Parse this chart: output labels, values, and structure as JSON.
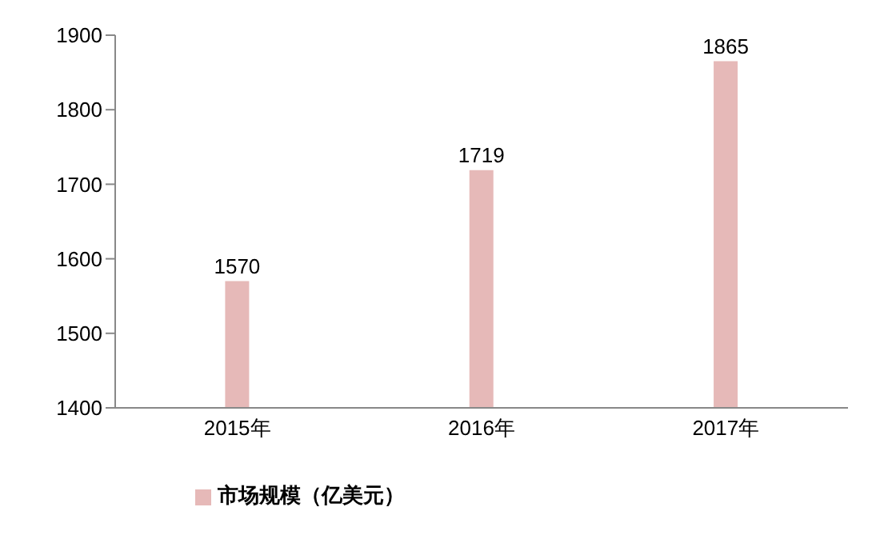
{
  "chart_data": {
    "type": "bar",
    "categories": [
      "2015年",
      "2016年",
      "2017年"
    ],
    "series": [
      {
        "name": "市场规模（亿美元）",
        "color": "#e6b9b8",
        "values": [
          1570,
          1719,
          1865
        ]
      }
    ],
    "ylim": [
      1400,
      1900
    ],
    "yticks": [
      1400,
      1500,
      1600,
      1700,
      1800,
      1900
    ],
    "data_labels": true,
    "grid": false,
    "legend": "bottom left"
  }
}
